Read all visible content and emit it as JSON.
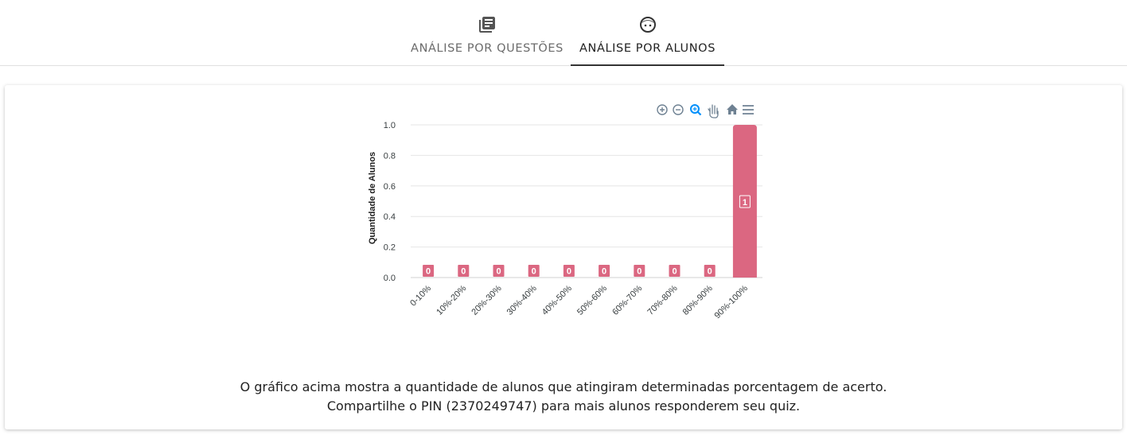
{
  "tabs": [
    {
      "label": "ANÁLISE POR QUESTÕES",
      "icon": "library-books-icon",
      "active": false
    },
    {
      "label": "ANÁLISE POR ALUNOS",
      "icon": "face-icon",
      "active": true
    }
  ],
  "toolbar": {
    "icons": [
      "zoom-in-icon",
      "zoom-out-icon",
      "selection-zoom-icon",
      "pan-icon",
      "reset-zoom-icon",
      "menu-icon"
    ]
  },
  "chart_data": {
    "type": "bar",
    "categories": [
      "0-10%",
      "10%-20%",
      "20%-30%",
      "30%-40%",
      "40%-50%",
      "50%-60%",
      "60%-70%",
      "70%-80%",
      "80%-90%",
      "90%-100%"
    ],
    "values": [
      0,
      0,
      0,
      0,
      0,
      0,
      0,
      0,
      0,
      1
    ],
    "ylabel": "Quantidade de Alunos",
    "xlabel": "",
    "ylim": [
      0,
      1
    ],
    "yticks": [
      "0.0",
      "0.2",
      "0.4",
      "0.6",
      "0.8",
      "1.0"
    ],
    "bar_color": "#db6781",
    "grid": true
  },
  "caption": {
    "line1": "O gráfico acima mostra a quantidade de alunos que atingiram determinadas porcentagem de acerto.",
    "line2": "Compartilhe o PIN (2370249747) para mais alunos responderem seu quiz."
  }
}
